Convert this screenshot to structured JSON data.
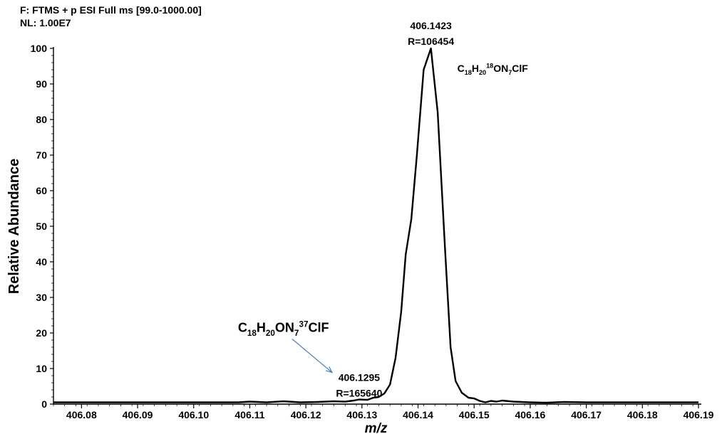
{
  "header": {
    "scan_filter": "F: FTMS + p ESI Full ms [99.0-1000.00]",
    "normalization": "NL: 1.00E7"
  },
  "chart_data": {
    "type": "line",
    "title": "",
    "xlabel": "m/z",
    "ylabel": "Relative Abundance",
    "xlim": [
      406.075,
      406.19
    ],
    "ylim": [
      0,
      100
    ],
    "grid": false,
    "x_ticks": [
      406.08,
      406.09,
      406.1,
      406.11,
      406.12,
      406.13,
      406.14,
      406.15,
      406.16,
      406.17,
      406.18,
      406.19
    ],
    "x_tick_labels": [
      "406.08",
      "406.09",
      "406.10",
      "406.11",
      "406.12",
      "406.13",
      "406.14",
      "406.15",
      "406.16",
      "406.17",
      "406.18",
      "406.19"
    ],
    "y_ticks": [
      0,
      10,
      20,
      30,
      40,
      50,
      60,
      70,
      80,
      90,
      100
    ],
    "y_tick_labels": [
      "0",
      "10",
      "20",
      "30",
      "40",
      "50",
      "60",
      "70",
      "80",
      "90",
      "100"
    ],
    "series": [
      {
        "color": "#000000",
        "points": [
          [
            406.075,
            0.5
          ],
          [
            406.08,
            0.5
          ],
          [
            406.09,
            0.5
          ],
          [
            406.1,
            0.5
          ],
          [
            406.108,
            0.5
          ],
          [
            406.11,
            0.7
          ],
          [
            406.113,
            0.5
          ],
          [
            406.116,
            0.8
          ],
          [
            406.119,
            0.5
          ],
          [
            406.122,
            0.6
          ],
          [
            406.125,
            0.8
          ],
          [
            406.127,
            0.7
          ],
          [
            406.1285,
            1.0
          ],
          [
            406.1295,
            1.3
          ],
          [
            406.131,
            1.2
          ],
          [
            406.132,
            1.8
          ],
          [
            406.133,
            2.0
          ],
          [
            406.134,
            3.0
          ],
          [
            406.135,
            5.5
          ],
          [
            406.136,
            13
          ],
          [
            406.137,
            26
          ],
          [
            406.1378,
            42
          ],
          [
            406.1388,
            52
          ],
          [
            406.1398,
            70
          ],
          [
            406.141,
            94
          ],
          [
            406.1423,
            100
          ],
          [
            406.1435,
            82
          ],
          [
            406.1448,
            44
          ],
          [
            406.1458,
            16
          ],
          [
            406.1467,
            6.5
          ],
          [
            406.1478,
            3.2
          ],
          [
            406.149,
            1.8
          ],
          [
            406.15,
            1.6
          ],
          [
            406.151,
            0.9
          ],
          [
            406.152,
            0.5
          ],
          [
            406.153,
            0.9
          ],
          [
            406.154,
            0.7
          ],
          [
            406.155,
            1.0
          ],
          [
            406.157,
            0.7
          ],
          [
            406.16,
            0.5
          ],
          [
            406.163,
            0.4
          ],
          [
            406.166,
            0.6
          ],
          [
            406.17,
            0.5
          ],
          [
            406.18,
            0.5
          ],
          [
            406.19,
            0.5
          ]
        ]
      }
    ],
    "annotations": [
      {
        "name": "main-peak",
        "x": 406.1423,
        "y": 100,
        "mz": "406.1423",
        "resolution": "R=106454",
        "formula": [
          {
            "text": "C"
          },
          {
            "text": "18",
            "sub": true
          },
          {
            "text": "H"
          },
          {
            "text": "20",
            "sub": true
          },
          {
            "text": "18",
            "sup": true
          },
          {
            "text": "ON"
          },
          {
            "text": "7",
            "sub": true
          },
          {
            "text": "ClF"
          }
        ]
      },
      {
        "name": "minor-peak",
        "x": 406.1295,
        "y": 1.3,
        "mz": "406.1295",
        "resolution": "R=165640",
        "formula": [
          {
            "text": "C"
          },
          {
            "text": "18",
            "sub": true
          },
          {
            "text": "H"
          },
          {
            "text": "20",
            "sub": true
          },
          {
            "text": "ON"
          },
          {
            "text": "7",
            "sub": true
          },
          {
            "text": "37",
            "sup": true
          },
          {
            "text": "ClF"
          }
        ]
      }
    ],
    "arrow_color": "#4a7fc1"
  }
}
